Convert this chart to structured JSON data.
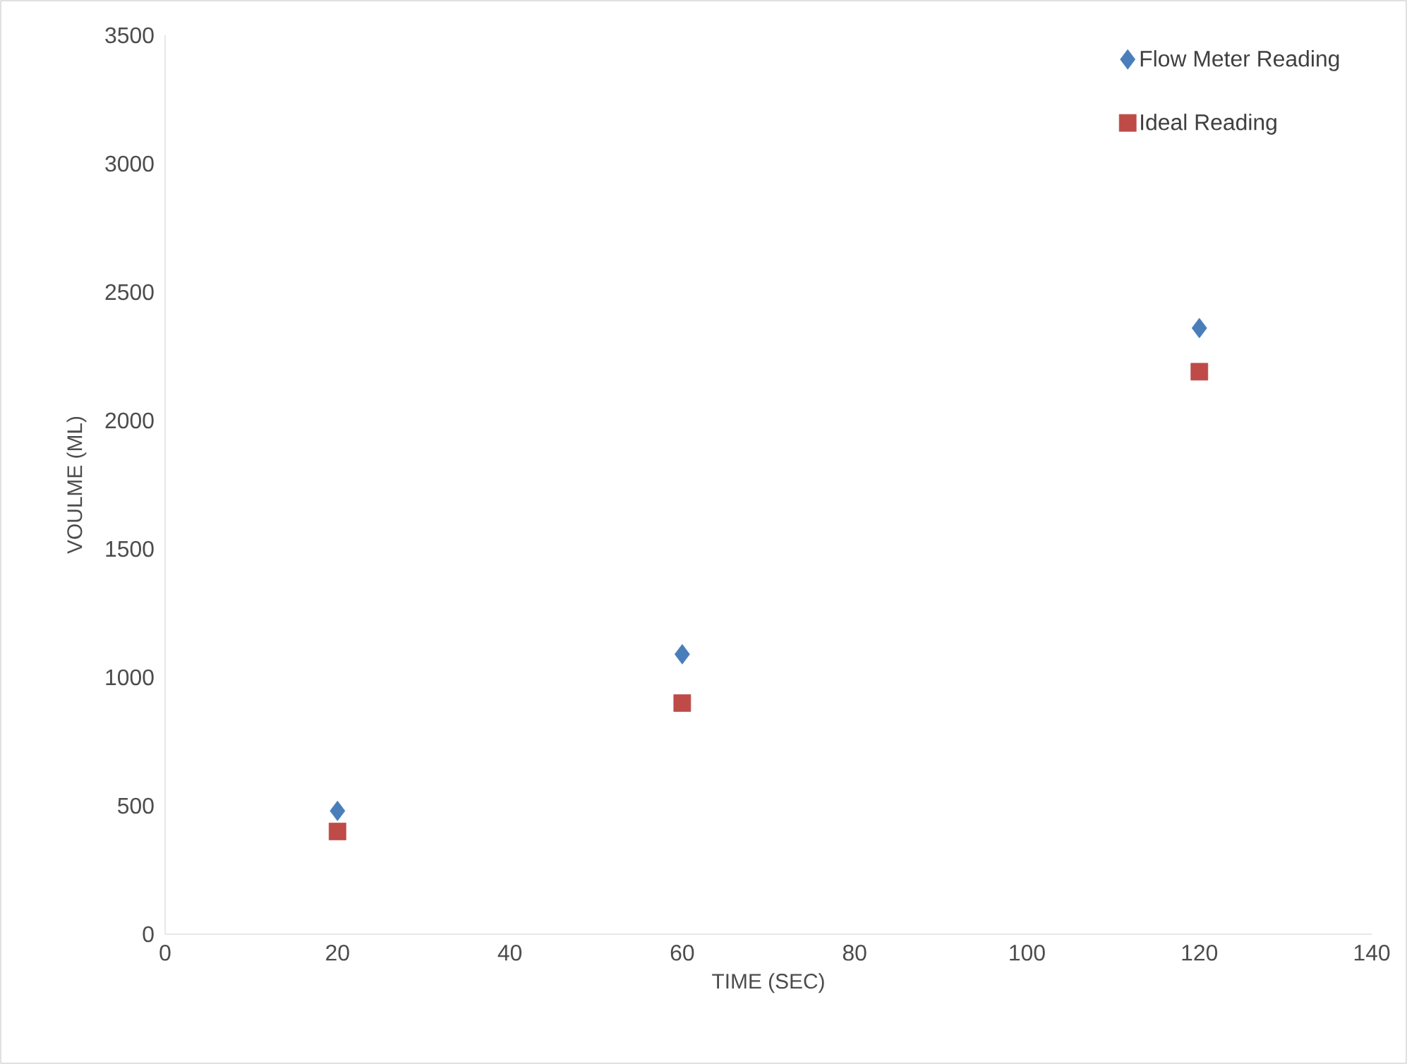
{
  "chart_data": {
    "type": "scatter",
    "xlabel": "TIME (SEC)",
    "ylabel": "VOULME (ML)",
    "xlim": [
      0,
      140
    ],
    "xticks": [
      0,
      20,
      40,
      60,
      80,
      100,
      120,
      140
    ],
    "ylim": [
      0,
      3500
    ],
    "yticks": [
      0,
      500,
      1000,
      1500,
      2000,
      2500,
      3000,
      3500
    ],
    "grid": false,
    "legend": "top right",
    "series": [
      {
        "name": "Flow Meter Reading",
        "color": "#4a7ebb",
        "marker": "diamond",
        "x": [
          20,
          60,
          120
        ],
        "values": [
          480,
          1090,
          2360
        ]
      },
      {
        "name": "Ideal Reading",
        "color": "#be4b48",
        "marker": "square",
        "x": [
          20,
          60,
          120
        ],
        "values": [
          400,
          900,
          2190
        ]
      }
    ]
  }
}
